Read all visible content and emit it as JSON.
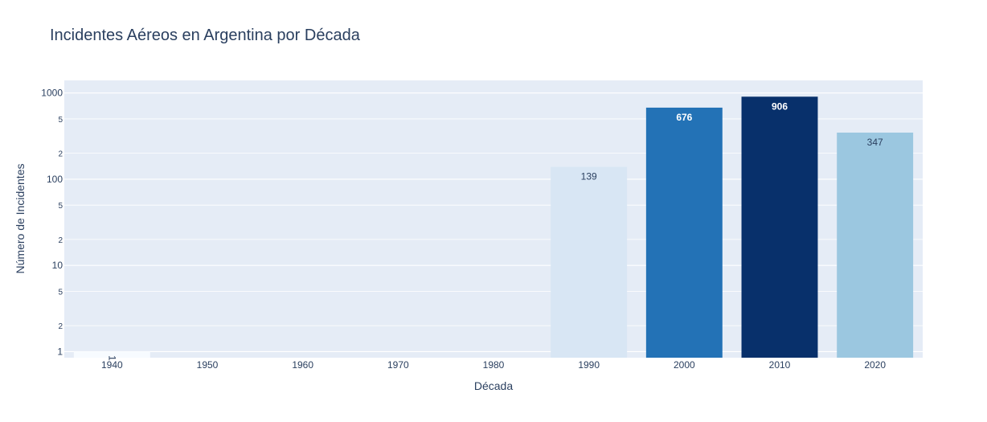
{
  "chart_data": {
    "type": "bar",
    "title": "Incidentes Aéreos en Argentina por Década",
    "xlabel": "Década",
    "ylabel": "Número de Incidentes",
    "yscale": "log",
    "ylim": [
      0.85,
      1400
    ],
    "grid": true,
    "categories": [
      "1940",
      "1950",
      "1960",
      "1970",
      "1980",
      "1990",
      "2000",
      "2010",
      "2020"
    ],
    "values": [
      1,
      null,
      null,
      null,
      null,
      139,
      676,
      906,
      347
    ],
    "data_labels": [
      "1",
      "",
      "",
      "",
      "",
      "139",
      "676",
      "906",
      "347"
    ],
    "bar_colors": [
      "#f7fbff",
      null,
      null,
      null,
      null,
      "#d8e6f4",
      "#2372b6",
      "#08306b",
      "#9bc7e0"
    ],
    "label_colors": [
      "#2a3f5f",
      null,
      null,
      null,
      null,
      "#2a3f5f",
      "#ffffff",
      "#ffffff",
      "#2a3f5f"
    ],
    "label_rotated": [
      true,
      false,
      false,
      false,
      false,
      false,
      false,
      false,
      false
    ],
    "y_major_ticks": [
      {
        "value": 1,
        "label": "1"
      },
      {
        "value": 10,
        "label": "10"
      },
      {
        "value": 100,
        "label": "100"
      },
      {
        "value": 1000,
        "label": "1000"
      }
    ],
    "y_minor_ticks": [
      {
        "value": 2,
        "label": "2"
      },
      {
        "value": 5,
        "label": "5"
      },
      {
        "value": 20,
        "label": "2"
      },
      {
        "value": 50,
        "label": "5"
      },
      {
        "value": 200,
        "label": "2"
      },
      {
        "value": 500,
        "label": "5"
      }
    ],
    "plot_background": "#e5ecf6",
    "grid_color": "#ffffff",
    "text_color": "#2a3f5f"
  }
}
